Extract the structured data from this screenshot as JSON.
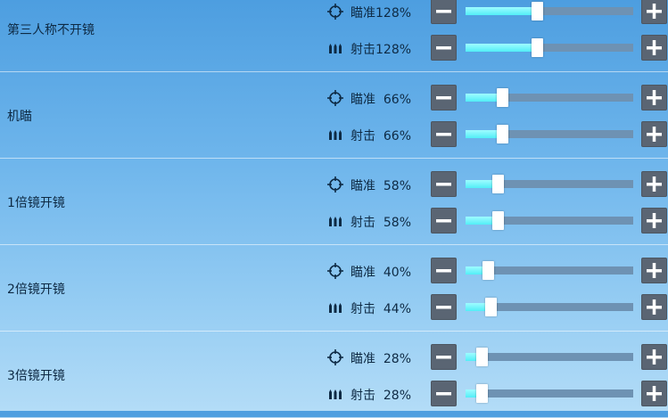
{
  "icons": {
    "aim": "crosshair-icon",
    "fire": "bullets-icon"
  },
  "colors": {
    "fill": "#52eef7",
    "track": "#6e92b3",
    "button": "#5a6573"
  },
  "sections": [
    {
      "title": "第三人称不开镜",
      "rows": [
        {
          "type": "aim",
          "label": "瞄准128%",
          "value": 128
        },
        {
          "type": "fire",
          "label": "射击128%",
          "value": 128
        }
      ]
    },
    {
      "title": "机瞄",
      "rows": [
        {
          "type": "aim",
          "label": "瞄准  66%",
          "value": 66
        },
        {
          "type": "fire",
          "label": "射击  66%",
          "value": 66
        }
      ]
    },
    {
      "title": "1倍镜开镜",
      "rows": [
        {
          "type": "aim",
          "label": "瞄准  58%",
          "value": 58
        },
        {
          "type": "fire",
          "label": "射击  58%",
          "value": 58
        }
      ]
    },
    {
      "title": "2倍镜开镜",
      "rows": [
        {
          "type": "aim",
          "label": "瞄准  40%",
          "value": 40
        },
        {
          "type": "fire",
          "label": "射击  44%",
          "value": 44
        }
      ]
    },
    {
      "title": "3倍镜开镜",
      "rows": [
        {
          "type": "aim",
          "label": "瞄准  28%",
          "value": 28
        },
        {
          "type": "fire",
          "label": "射击  28%",
          "value": 28
        }
      ]
    }
  ],
  "slider_range": {
    "min": 0,
    "max": 300
  }
}
